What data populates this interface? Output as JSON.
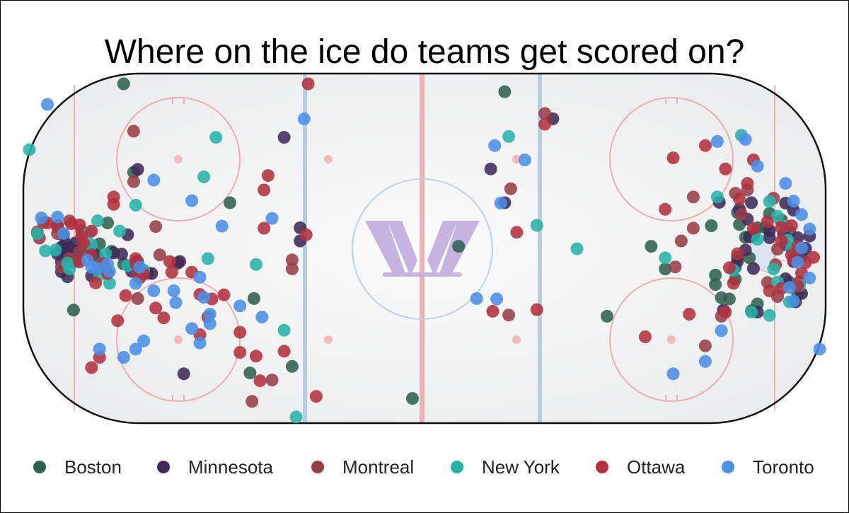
{
  "chart_data": {
    "type": "scatter",
    "title": "Where on the ice do teams get scored on?",
    "xlabel": "",
    "ylabel": "",
    "xlim": [
      -100,
      100
    ],
    "ylim": [
      -42.5,
      42.5
    ],
    "grid": false,
    "legend_position": "bottom",
    "background": "hockey rink",
    "logo_text": "W",
    "series": [
      {
        "name": "Boston",
        "color": "#2d6150",
        "points": [
          [
            -75,
            40
          ],
          [
            -72.5,
            18.5
          ],
          [
            -75,
            -3.8
          ],
          [
            -79,
            6.2
          ],
          [
            -81,
            1.1
          ],
          [
            -89.5,
            -1.1
          ],
          [
            -88.5,
            -3.2
          ],
          [
            -84,
            0.3
          ],
          [
            -87,
            -3.2
          ],
          [
            -81.5,
            -1.9
          ],
          [
            -71.5,
            -3.2
          ],
          [
            -78,
            -0.7
          ],
          [
            -87.5,
            -15
          ],
          [
            -48.5,
            11.1
          ],
          [
            -42.5,
            -12.2
          ],
          [
            -43.5,
            -30.3
          ],
          [
            -33,
            -28.7
          ],
          [
            20,
            38.1
          ],
          [
            8.5,
            0.5
          ],
          [
            -3,
            -36.5
          ],
          [
            45.5,
            -16.5
          ],
          [
            56.5,
            0.5
          ],
          [
            60,
            -5
          ],
          [
            71.5,
            5.5
          ],
          [
            78,
            8.7
          ],
          [
            78.5,
            5.8
          ],
          [
            80,
            2.7
          ],
          [
            82,
            3.1
          ],
          [
            83,
            5
          ],
          [
            85,
            5.1
          ],
          [
            86,
            8.5
          ],
          [
            89,
            6.9
          ],
          [
            91,
            4.1
          ],
          [
            72.5,
            -6.5
          ],
          [
            72.5,
            -8.8
          ],
          [
            77.5,
            -7.5
          ],
          [
            78,
            -2.2
          ],
          [
            76,
            -12.3
          ],
          [
            83,
            -13.5
          ],
          [
            81.5,
            -15.2
          ],
          [
            81,
            -2.3
          ],
          [
            91,
            -8.3
          ],
          [
            93,
            -11
          ],
          [
            77.5,
            -4.6
          ],
          [
            74,
            -12
          ]
        ]
      },
      {
        "name": "Minnesota",
        "color": "#3f2a58",
        "points": [
          [
            -91.5,
            5.5
          ],
          [
            -90,
            3.3
          ],
          [
            -89.5,
            1.2
          ],
          [
            -90.5,
            0.3
          ],
          [
            -88.5,
            0.2
          ],
          [
            -87,
            1.3
          ],
          [
            -86.5,
            -0.8
          ],
          [
            -89,
            -0.3
          ],
          [
            -91.5,
            -1.3
          ],
          [
            -90.5,
            -3.3
          ],
          [
            -89,
            -6.9
          ],
          [
            -90.5,
            -5.7
          ],
          [
            -82.5,
            -1.3
          ],
          [
            -77.5,
            -1.1
          ],
          [
            -75.5,
            -1.4
          ],
          [
            -73,
            -5.6
          ],
          [
            -74,
            3.3
          ],
          [
            -69,
            -6
          ],
          [
            -68,
            -6.1
          ],
          [
            -71.5,
            19.2
          ],
          [
            -83,
            -6.7
          ],
          [
            -61.5,
            -3.6
          ],
          [
            -61,
            -3.2
          ],
          [
            -60,
            -30.5
          ],
          [
            -35,
            27
          ],
          [
            -31,
            5
          ],
          [
            -31,
            1.8
          ],
          [
            20,
            11.1
          ],
          [
            16.5,
            19.3
          ],
          [
            32,
            31.5
          ],
          [
            73.5,
            11.2
          ],
          [
            81.5,
            11.1
          ],
          [
            78.5,
            9.5
          ],
          [
            80.5,
            7.1
          ],
          [
            90,
            11
          ],
          [
            92,
            9.3
          ],
          [
            89.5,
            3.5
          ],
          [
            90,
            0.9
          ],
          [
            93,
            2.6
          ],
          [
            86,
            4.3
          ],
          [
            86,
            2.6
          ],
          [
            81,
            2.8
          ],
          [
            80,
            -0.4
          ],
          [
            82,
            -4.9
          ],
          [
            78,
            -3.2
          ],
          [
            74.5,
            -15
          ],
          [
            83,
            -15.5
          ],
          [
            92.5,
            -13
          ],
          [
            92,
            -3.2
          ],
          [
            94,
            -2
          ],
          [
            90,
            -7.4
          ],
          [
            94,
            -11
          ],
          [
            95,
            0
          ],
          [
            96,
            3
          ]
        ]
      },
      {
        "name": "Montreal",
        "color": "#973d4a",
        "points": [
          [
            -96.5,
            4
          ],
          [
            -96,
            2.5
          ],
          [
            -95,
            6.3
          ],
          [
            -91.5,
            3.6
          ],
          [
            -88.5,
            6.7
          ],
          [
            -85.5,
            4.3
          ],
          [
            -86,
            -0.9
          ],
          [
            -88.5,
            -2.5
          ],
          [
            -90.5,
            -4.5
          ],
          [
            -72.5,
            16.2
          ],
          [
            -72.5,
            28.5
          ],
          [
            -71.5,
            -5.8
          ],
          [
            -71.5,
            -12.2
          ],
          [
            -67,
            5.3
          ],
          [
            -66,
            -1.6
          ],
          [
            -43,
            -37.2
          ],
          [
            -38,
            -32
          ],
          [
            -33,
            -5
          ],
          [
            -33,
            -2.8
          ],
          [
            30,
            32.8
          ],
          [
            21.5,
            14.5
          ],
          [
            21,
            -16.2
          ],
          [
            62.5,
            -4.5
          ],
          [
            67,
            12.5
          ],
          [
            77.5,
            13.4
          ],
          [
            79,
            8.3
          ],
          [
            80.5,
            14.2
          ],
          [
            87,
            12.2
          ],
          [
            89,
            6.5
          ],
          [
            88,
            -0.2
          ],
          [
            87.5,
            -4
          ],
          [
            85.5,
            -8.3
          ],
          [
            88,
            -11.7
          ],
          [
            93.5,
            -8.1
          ],
          [
            74,
            -16.5
          ],
          [
            70,
            -23.7
          ],
          [
            67,
            4.9
          ],
          [
            64,
            1.8
          ]
        ]
      },
      {
        "name": "New York",
        "color": "#28b2a8",
        "points": [
          [
            -98.5,
            24
          ],
          [
            -96.5,
            3.6
          ],
          [
            -94.5,
            -0.6
          ],
          [
            -92,
            -0.4
          ],
          [
            -89,
            -3.6
          ],
          [
            -88.5,
            -5
          ],
          [
            -83.5,
            3.9
          ],
          [
            -83,
            0.9
          ],
          [
            -81.5,
            6.7
          ],
          [
            -79.5,
            -1.3
          ],
          [
            -81,
            -6.5
          ],
          [
            -78.5,
            -8.5
          ],
          [
            -70,
            -5.3
          ],
          [
            -74,
            -4.2
          ],
          [
            -76,
            4.2
          ],
          [
            -72,
            10.5
          ],
          [
            -42,
            -3.9
          ],
          [
            -54,
            -2.5
          ],
          [
            -55,
            17.4
          ],
          [
            -52,
            27
          ],
          [
            -35,
            -19.9
          ],
          [
            -32,
            -41
          ],
          [
            21,
            27.2
          ],
          [
            28,
            5.6
          ],
          [
            38,
            -0.1
          ],
          [
            73,
            12.5
          ],
          [
            79,
            27.5
          ],
          [
            86,
            11.4
          ],
          [
            88,
            7.8
          ],
          [
            90,
            5.5
          ],
          [
            90.5,
            2
          ],
          [
            91.5,
            0
          ],
          [
            87,
            -5
          ],
          [
            88,
            -8.2
          ],
          [
            91,
            -13
          ],
          [
            93.5,
            -9
          ],
          [
            81.5,
            -15.5
          ],
          [
            86,
            -16.3
          ],
          [
            83,
            2.2
          ],
          [
            77,
            -5.3
          ],
          [
            60,
            -2.3
          ]
        ]
      },
      {
        "name": "Ottawa",
        "color": "#b3303f",
        "points": [
          [
            -77.5,
            10.7
          ],
          [
            -77.5,
            12.5
          ],
          [
            -94,
            6.2
          ],
          [
            -91.5,
            5.3
          ],
          [
            -88,
            6
          ],
          [
            -86,
            5.7
          ],
          [
            -85.5,
            2.9
          ],
          [
            -85,
            1.4
          ],
          [
            -83,
            4.2
          ],
          [
            -86,
            -3.3
          ],
          [
            -83,
            -1.6
          ],
          [
            -80,
            -3.7
          ],
          [
            -82,
            -8.4
          ],
          [
            -74.5,
            -11.5
          ],
          [
            -72,
            -3.6
          ],
          [
            -71,
            -7.2
          ],
          [
            -76.5,
            -17.6
          ],
          [
            -70,
            -6.3
          ],
          [
            -79,
            -6.1
          ],
          [
            -72,
            -2.5
          ],
          [
            -67,
            -14.5
          ],
          [
            -65,
            -16.9
          ],
          [
            -50,
            -11.3
          ],
          [
            -46,
            -20.4
          ],
          [
            -42,
            -26.2
          ],
          [
            -40,
            4.9
          ],
          [
            -39,
            17.7
          ],
          [
            -56,
            -11.2
          ],
          [
            -63.5,
            -3.2
          ],
          [
            -63,
            -5.8
          ],
          [
            -53,
            -12.3
          ],
          [
            -58,
            -5.8
          ],
          [
            -54,
            -16.7
          ],
          [
            -40,
            14.2
          ],
          [
            -41,
            -32.2
          ],
          [
            -56,
            -21
          ],
          [
            -46,
            -25.3
          ],
          [
            -81,
            -26.5
          ],
          [
            -83,
            -29
          ],
          [
            -27,
            -36
          ],
          [
            -29.5,
            3.3
          ],
          [
            -35,
            -25
          ],
          [
            -29,
            40
          ],
          [
            30,
            30.2
          ],
          [
            28,
            -14.9
          ],
          [
            17,
            -15.3
          ],
          [
            23,
            3.9
          ],
          [
            60,
            9.5
          ],
          [
            62,
            22
          ],
          [
            70,
            25
          ],
          [
            75,
            19.3
          ],
          [
            78.5,
            12
          ],
          [
            80.5,
            15.8
          ],
          [
            82,
            21.5
          ],
          [
            82,
            4.8
          ],
          [
            85.5,
            6.5
          ],
          [
            89,
            5
          ],
          [
            91.5,
            5.5
          ],
          [
            89,
            1.8
          ],
          [
            93,
            0.4
          ],
          [
            91.5,
            -1.6
          ],
          [
            95,
            -3.5
          ],
          [
            93,
            -9.1
          ],
          [
            89,
            -9.7
          ],
          [
            77,
            -8.5
          ],
          [
            75,
            -15.5
          ],
          [
            86,
            -10.3
          ],
          [
            76,
            -4.7
          ],
          [
            78,
            -1.3
          ],
          [
            97,
            -2.2
          ],
          [
            92,
            -2.8
          ],
          [
            94,
            -6
          ],
          [
            66,
            -16
          ],
          [
            55,
            -21.5
          ]
        ]
      },
      {
        "name": "Toronto",
        "color": "#4a8ee6",
        "points": [
          [
            -94,
            35
          ],
          [
            -95.5,
            7.4
          ],
          [
            -91.5,
            7.6
          ],
          [
            -90,
            3.6
          ],
          [
            -83,
            -4.6
          ],
          [
            -84,
            -2.9
          ],
          [
            -81.5,
            -4.9
          ],
          [
            -79,
            -3.8
          ],
          [
            -78.5,
            -5.6
          ],
          [
            -71,
            -4.6
          ],
          [
            -72,
            -8.5
          ],
          [
            -67.5,
            -10.3
          ],
          [
            -62.5,
            -10.3
          ],
          [
            -62,
            -13.2
          ],
          [
            -56,
            -23
          ],
          [
            -75,
            -26.5
          ],
          [
            -81,
            -24.5
          ],
          [
            -58,
            -19.5
          ],
          [
            -56,
            -7
          ],
          [
            -55,
            -11.9
          ],
          [
            -53.5,
            -18.3
          ],
          [
            -40.5,
            -16.7
          ],
          [
            -46,
            -14
          ],
          [
            -53.5,
            -16
          ],
          [
            -70,
            -22.5
          ],
          [
            -72,
            -24.5
          ],
          [
            -58,
            11.6
          ],
          [
            -67.5,
            16.6
          ],
          [
            -50.5,
            5.4
          ],
          [
            -38,
            7.3
          ],
          [
            -30,
            31.5
          ],
          [
            25,
            21.5
          ],
          [
            17.5,
            25
          ],
          [
            19,
            11
          ],
          [
            13,
            -12.2
          ],
          [
            18,
            -12.3
          ],
          [
            73,
            26
          ],
          [
            80,
            26.5
          ],
          [
            83,
            20
          ],
          [
            90,
            15.8
          ],
          [
            92,
            11.5
          ],
          [
            94,
            8.2
          ],
          [
            96,
            4.7
          ],
          [
            94,
            0.1
          ],
          [
            93,
            -3.4
          ],
          [
            96,
            -7.2
          ],
          [
            91,
            -9.5
          ],
          [
            92,
            -12.8
          ],
          [
            74,
            -20
          ],
          [
            62,
            -30.5
          ],
          [
            70,
            -27.5
          ],
          [
            98.5,
            -24.5
          ]
        ]
      }
    ]
  },
  "legend": {
    "items": [
      {
        "label": "Boston",
        "color": "#2d6150"
      },
      {
        "label": "Minnesota",
        "color": "#3f2a58"
      },
      {
        "label": "Montreal",
        "color": "#973d4a"
      },
      {
        "label": "New York",
        "color": "#28b2a8"
      },
      {
        "label": "Ottawa",
        "color": "#b3303f"
      },
      {
        "label": "Toronto",
        "color": "#4a8ee6"
      }
    ]
  }
}
